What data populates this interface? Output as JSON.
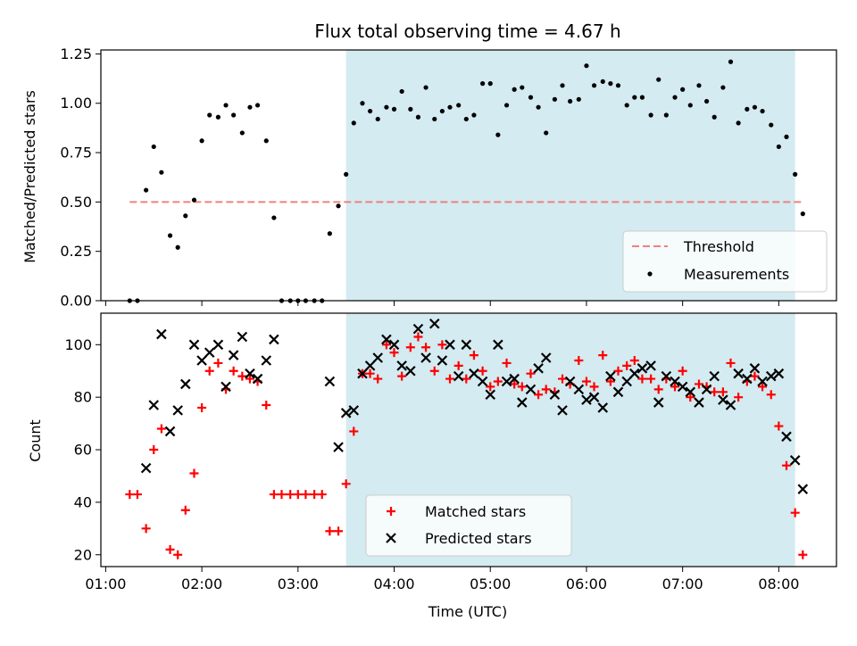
{
  "chart_data": {
    "title": "Flux total observing time = 4.67 h",
    "x_axis": {
      "label": "Time (UTC)",
      "range_hours": [
        0.95,
        8.6
      ],
      "ticks": [
        {
          "value": 1,
          "label": "01:00"
        },
        {
          "value": 2,
          "label": "02:00"
        },
        {
          "value": 3,
          "label": "03:00"
        },
        {
          "value": 4,
          "label": "04:00"
        },
        {
          "value": 5,
          "label": "05:00"
        },
        {
          "value": 6,
          "label": "06:00"
        },
        {
          "value": 7,
          "label": "07:00"
        },
        {
          "value": 8,
          "label": "08:00"
        }
      ]
    },
    "shaded_interval_hours": [
      3.5,
      8.17
    ],
    "shade_color": "#d3ebf1",
    "panels": [
      {
        "type": "scatter",
        "ylabel": "Matched/Predicted stars",
        "ylim": [
          0,
          1.27
        ],
        "yticks": [
          {
            "value": 0,
            "label": "0.00"
          },
          {
            "value": 0.25,
            "label": "0.25"
          },
          {
            "value": 0.5,
            "label": "0.50"
          },
          {
            "value": 0.75,
            "label": "0.75"
          },
          {
            "value": 1.0,
            "label": "1.00"
          },
          {
            "value": 1.25,
            "label": "1.25"
          }
        ],
        "threshold": {
          "name": "Threshold",
          "value": 0.5,
          "x_range": [
            1.25,
            8.25
          ],
          "color": "#f08080"
        },
        "measurements": {
          "name": "Measurements",
          "color": "#000000",
          "x": [
            1.25,
            1.33,
            1.42,
            1.5,
            1.58,
            1.67,
            1.75,
            1.83,
            1.92,
            2.0,
            2.08,
            2.17,
            2.25,
            2.33,
            2.42,
            2.5,
            2.58,
            2.67,
            2.75,
            2.83,
            2.92,
            3.0,
            3.08,
            3.17,
            3.25,
            3.33,
            3.42,
            3.5,
            3.58,
            3.67,
            3.75,
            3.83,
            3.92,
            4.0,
            4.08,
            4.17,
            4.25,
            4.33,
            4.42,
            4.5,
            4.58,
            4.67,
            4.75,
            4.83,
            4.92,
            5.0,
            5.08,
            5.17,
            5.25,
            5.33,
            5.42,
            5.5,
            5.58,
            5.67,
            5.75,
            5.83,
            5.92,
            6.0,
            6.08,
            6.17,
            6.25,
            6.33,
            6.42,
            6.5,
            6.58,
            6.67,
            6.75,
            6.83,
            6.92,
            7.0,
            7.08,
            7.17,
            7.25,
            7.33,
            7.42,
            7.5,
            7.58,
            7.67,
            7.75,
            7.83,
            7.92,
            8.0,
            8.08,
            8.17,
            8.25
          ],
          "y": [
            0.0,
            0.0,
            0.56,
            0.78,
            0.65,
            0.33,
            0.27,
            0.43,
            0.51,
            0.81,
            0.94,
            0.93,
            0.99,
            0.94,
            0.85,
            0.98,
            0.99,
            0.81,
            0.42,
            0.0,
            0.0,
            0.0,
            0.0,
            0.0,
            0.0,
            0.34,
            0.48,
            0.64,
            0.9,
            1.0,
            0.96,
            0.92,
            0.98,
            0.97,
            1.06,
            0.97,
            0.93,
            1.08,
            0.92,
            0.96,
            0.98,
            0.99,
            0.92,
            0.94,
            1.1,
            1.1,
            0.84,
            0.99,
            1.07,
            1.08,
            1.03,
            0.98,
            0.85,
            1.02,
            1.09,
            1.01,
            1.02,
            1.19,
            1.09,
            1.11,
            1.1,
            1.09,
            0.99,
            1.03,
            1.03,
            0.94,
            1.12,
            0.94,
            1.03,
            1.07,
            0.99,
            1.09,
            1.01,
            0.93,
            1.08,
            1.21,
            0.9,
            0.97,
            0.98,
            0.96,
            0.89,
            0.78,
            0.83,
            0.64,
            0.44
          ]
        },
        "legend": {
          "placement": "lower-right",
          "entries": [
            "Threshold",
            "Measurements"
          ]
        }
      },
      {
        "type": "scatter",
        "ylabel": "Count",
        "ylim": [
          15.5,
          112
        ],
        "yticks": [
          {
            "value": 20,
            "label": "20"
          },
          {
            "value": 40,
            "label": "40"
          },
          {
            "value": 60,
            "label": "60"
          },
          {
            "value": 80,
            "label": "80"
          },
          {
            "value": 100,
            "label": "100"
          }
        ],
        "series": [
          {
            "name": "Matched stars",
            "marker": "+",
            "color": "#ff0000",
            "x": [
              1.25,
              1.33,
              1.42,
              1.5,
              1.58,
              1.67,
              1.75,
              1.83,
              1.92,
              2.0,
              2.08,
              2.17,
              2.25,
              2.33,
              2.42,
              2.5,
              2.58,
              2.67,
              2.75,
              2.83,
              2.92,
              3.0,
              3.08,
              3.17,
              3.25,
              3.33,
              3.42,
              3.5,
              3.58,
              3.67,
              3.75,
              3.83,
              3.92,
              4.0,
              4.08,
              4.17,
              4.25,
              4.33,
              4.42,
              4.5,
              4.58,
              4.67,
              4.75,
              4.83,
              4.92,
              5.0,
              5.08,
              5.17,
              5.25,
              5.33,
              5.42,
              5.5,
              5.58,
              5.67,
              5.75,
              5.83,
              5.92,
              6.0,
              6.08,
              6.17,
              6.25,
              6.33,
              6.42,
              6.5,
              6.58,
              6.67,
              6.75,
              6.83,
              6.92,
              7.0,
              7.08,
              7.17,
              7.25,
              7.33,
              7.42,
              7.5,
              7.58,
              7.67,
              7.75,
              7.83,
              7.92,
              8.0,
              8.08,
              8.17,
              8.25
            ],
            "y": [
              43,
              43,
              30,
              60,
              68,
              22,
              20,
              37,
              51,
              76,
              90,
              93,
              83,
              90,
              88,
              87,
              86,
              77,
              43,
              43,
              43,
              43,
              43,
              43,
              43,
              29,
              29,
              47,
              67,
              89,
              89,
              87,
              100,
              97,
              88,
              99,
              103,
              99,
              90,
              100,
              87,
              92,
              87,
              96,
              90,
              84,
              86,
              93,
              85,
              84,
              89,
              81,
              83,
              82,
              87,
              85,
              94,
              86,
              84,
              96,
              86,
              90,
              92,
              94,
              87,
              87,
              83,
              87,
              84,
              90,
              80,
              85,
              84,
              82,
              82,
              93,
              80,
              86,
              88,
              84,
              81,
              69,
              54,
              36,
              20
            ]
          },
          {
            "name": "Predicted stars",
            "marker": "x",
            "color": "#000000",
            "x": [
              1.42,
              1.5,
              1.58,
              1.67,
              1.75,
              1.83,
              1.92,
              2.0,
              2.08,
              2.17,
              2.25,
              2.33,
              2.42,
              2.5,
              2.58,
              2.67,
              2.75,
              3.33,
              3.42,
              3.5,
              3.58,
              3.67,
              3.75,
              3.83,
              3.92,
              4.0,
              4.08,
              4.17,
              4.25,
              4.33,
              4.42,
              4.5,
              4.58,
              4.67,
              4.75,
              4.83,
              4.92,
              5.0,
              5.08,
              5.17,
              5.25,
              5.33,
              5.42,
              5.5,
              5.58,
              5.67,
              5.75,
              5.83,
              5.92,
              6.0,
              6.08,
              6.17,
              6.25,
              6.33,
              6.42,
              6.5,
              6.58,
              6.67,
              6.75,
              6.83,
              6.92,
              7.0,
              7.08,
              7.17,
              7.25,
              7.33,
              7.42,
              7.5,
              7.58,
              7.67,
              7.75,
              7.83,
              7.92,
              8.0,
              8.08,
              8.17,
              8.25
            ],
            "y": [
              53,
              77,
              104,
              67,
              75,
              85,
              100,
              94,
              97,
              100,
              84,
              96,
              103,
              89,
              87,
              94,
              102,
              86,
              61,
              74,
              75,
              89,
              92,
              95,
              102,
              100,
              92,
              90,
              106,
              95,
              108,
              94,
              100,
              88,
              100,
              89,
              86,
              81,
              100,
              86,
              87,
              78,
              83,
              91,
              95,
              81,
              75,
              86,
              83,
              79,
              80,
              76,
              88,
              82,
              86,
              89,
              91,
              92,
              78,
              88,
              86,
              84,
              82,
              78,
              83,
              88,
              79,
              77,
              89,
              87,
              91,
              86,
              88,
              89,
              65,
              56,
              45
            ]
          }
        ],
        "legend": {
          "placement": "lower-center",
          "entries": [
            "Matched stars",
            "Predicted stars"
          ]
        }
      }
    ]
  }
}
